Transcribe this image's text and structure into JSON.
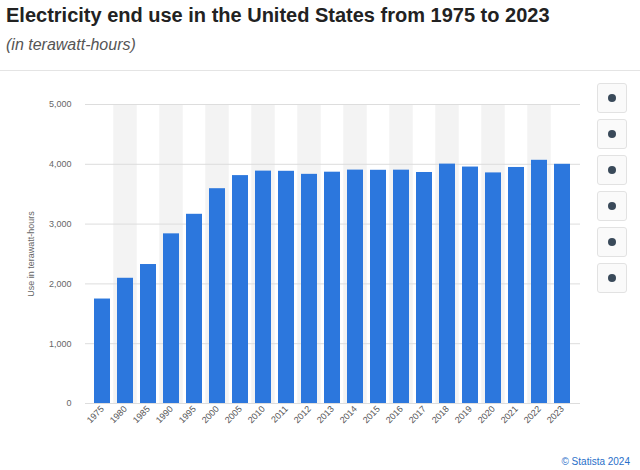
{
  "chart_data": {
    "type": "bar",
    "title": "Electricity end use in the United States from 1975 to 2023",
    "subtitle": "(in terawatt-hours)",
    "y_label": "Use in terawatt-hours",
    "caption": "© Statista 2024",
    "categories": [
      "1975",
      "1980",
      "1985",
      "1990",
      "1995",
      "2000",
      "2005",
      "2010",
      "2011",
      "2012",
      "2013",
      "2014",
      "2015",
      "2016",
      "2017",
      "2018",
      "2019",
      "2020",
      "2021",
      "2022",
      "2023"
    ],
    "values": [
      1747,
      2094,
      2324,
      2837,
      3164,
      3592,
      3811,
      3886,
      3883,
      3832,
      3868,
      3903,
      3900,
      3902,
      3863,
      4003,
      3954,
      3856,
      3947,
      4067,
      4000
    ],
    "color": "#2c77dd",
    "ylim": [
      0,
      5000
    ],
    "yticks": [
      0,
      {
        "value": 1000,
        "label": "1,000"
      },
      {
        "value": 2000,
        "label": "2,000"
      },
      {
        "value": 3000,
        "label": "3,000"
      },
      {
        "value": 4000,
        "label": "4,000"
      },
      {
        "value": 5000,
        "label": "5,000"
      }
    ],
    "grid": true
  }
}
